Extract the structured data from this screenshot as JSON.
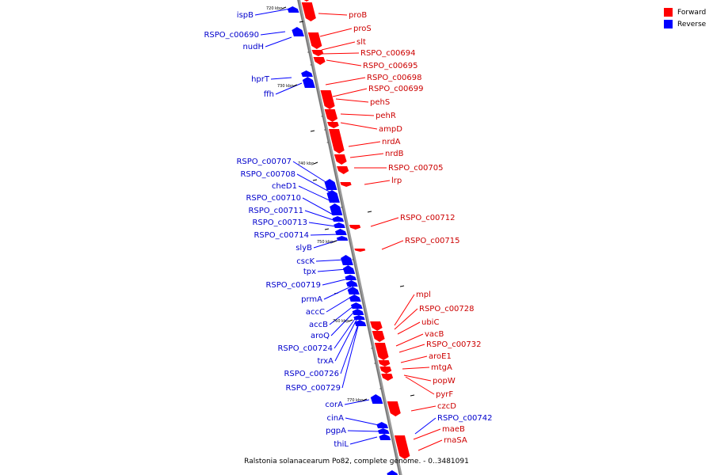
{
  "legend": {
    "forward_label": "Forward",
    "reverse_label": "Reverse",
    "forward_color": "#ff0000",
    "reverse_color": "#0000ff"
  },
  "caption": "Ralstonia solanacearum Po82, complete genome. - 0..3481091",
  "kbp_marks": [
    "720 kbp",
    "730 kbp",
    "740 kbp",
    "750 kbp",
    "760 kbp",
    "770 kbp"
  ],
  "genes_forward": [
    "proB",
    "proS",
    "slt",
    "RSPO_c00694",
    "RSPO_c00695",
    "RSPO_c00698",
    "RSPO_c00699",
    "pehS",
    "pehR",
    "ampD",
    "nrdA",
    "nrdB",
    "RSPO_c00705",
    "lrp",
    "RSPO_c00712",
    "RSPO_c00715",
    "mpl",
    "RSPO_c00728",
    "ubiC",
    "vacB",
    "RSPO_c00732",
    "aroE1",
    "mtgA",
    "popW",
    "pyrF",
    "czcD",
    "maeB",
    "rnaSA"
  ],
  "genes_reverse": [
    "ispB",
    "RSPO_c00690",
    "nudH",
    "hprT",
    "ffh",
    "RSPO_c00707",
    "RSPO_c00708",
    "cheD1",
    "RSPO_c00710",
    "RSPO_c00711",
    "RSPO_c00713",
    "RSPO_c00714",
    "slyB",
    "cscK",
    "tpx",
    "RSPO_c00719",
    "prmA",
    "accC",
    "accB",
    "aroQ",
    "RSPO_c00724",
    "trxA",
    "RSPO_c00726",
    "RSPO_c00729",
    "corA",
    "cinA",
    "pgpA",
    "thiL",
    "RSPO_c00742"
  ]
}
